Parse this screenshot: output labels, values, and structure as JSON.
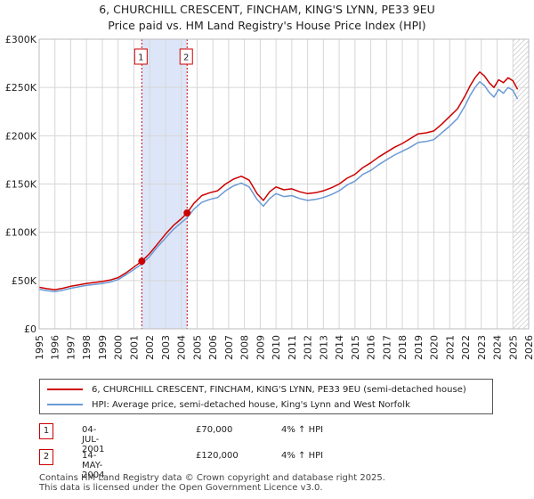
{
  "title_line1": "6, CHURCHILL CRESCENT, FINCHAM, KING'S LYNN, PE33 9EU",
  "title_line2": "Price paid vs. HM Land Registry's House Price Index (HPI)",
  "colors": {
    "property": "#cc0000",
    "hpi": "#6a9ad4",
    "shade": "#dde6f8",
    "grid": "#d6d6d6"
  },
  "chart_data": {
    "type": "line",
    "xlim": [
      1995,
      2026
    ],
    "ylim": [
      0,
      300000
    ],
    "x_ticks": [
      "1995",
      "1996",
      "1997",
      "1998",
      "1999",
      "2000",
      "2001",
      "2002",
      "2003",
      "2004",
      "2005",
      "2006",
      "2007",
      "2008",
      "2009",
      "2010",
      "2011",
      "2012",
      "2013",
      "2014",
      "2015",
      "2016",
      "2017",
      "2018",
      "2019",
      "2020",
      "2021",
      "2022",
      "2023",
      "2024",
      "2025",
      "2026"
    ],
    "y_ticks": [
      {
        "value": 0,
        "label": "£0"
      },
      {
        "value": 50000,
        "label": "£50K"
      },
      {
        "value": 100000,
        "label": "£100K"
      },
      {
        "value": 150000,
        "label": "£150K"
      },
      {
        "value": 200000,
        "label": "£200K"
      },
      {
        "value": 250000,
        "label": "£250K"
      },
      {
        "value": 300000,
        "label": "£300K"
      }
    ],
    "shaded_span": [
      2001.5,
      2004.37
    ],
    "future_from": 2025.0,
    "series": [
      {
        "name": "6, CHURCHILL CRESCENT, FINCHAM, KING'S LYNN, PE33 9EU (semi-detached house)",
        "key": "property",
        "x": [
          1995.0,
          1995.5,
          1996.0,
          1996.5,
          1997.0,
          1997.5,
          1998.0,
          1998.5,
          1999.0,
          1999.5,
          2000.0,
          2000.5,
          2001.0,
          2001.5,
          2002.0,
          2002.5,
          2003.0,
          2003.5,
          2004.0,
          2004.37,
          2004.8,
          2005.3,
          2005.8,
          2006.3,
          2006.8,
          2007.3,
          2007.8,
          2008.3,
          2008.8,
          2009.2,
          2009.6,
          2010.0,
          2010.5,
          2011.0,
          2011.5,
          2012.0,
          2012.5,
          2013.0,
          2013.5,
          2014.0,
          2014.5,
          2015.0,
          2015.5,
          2016.0,
          2016.5,
          2017.0,
          2017.5,
          2018.0,
          2018.5,
          2019.0,
          2019.5,
          2020.0,
          2020.5,
          2021.0,
          2021.5,
          2022.0,
          2022.3,
          2022.6,
          2022.9,
          2023.2,
          2023.5,
          2023.8,
          2024.1,
          2024.4,
          2024.7,
          2025.0,
          2025.3
        ],
        "y": [
          43000,
          41500,
          40500,
          42000,
          44000,
          45500,
          47000,
          48000,
          49000,
          50500,
          53000,
          58000,
          64000,
          70000,
          78000,
          88000,
          98000,
          107000,
          114000,
          120000,
          130000,
          138000,
          141000,
          143000,
          150000,
          155000,
          158000,
          154000,
          140000,
          133000,
          142000,
          147000,
          144000,
          145000,
          142000,
          140000,
          141000,
          143000,
          146000,
          150000,
          156000,
          160000,
          167000,
          172000,
          178000,
          183000,
          188000,
          192000,
          197000,
          202000,
          203000,
          205000,
          212000,
          220000,
          228000,
          242000,
          252000,
          260000,
          266000,
          262000,
          255000,
          250000,
          258000,
          255000,
          260000,
          257000,
          248000
        ]
      },
      {
        "name": "HPI: Average price, semi-detached house, King's Lynn and West Norfolk",
        "key": "hpi",
        "x": [
          1995.0,
          1995.5,
          1996.0,
          1996.5,
          1997.0,
          1997.5,
          1998.0,
          1998.5,
          1999.0,
          1999.5,
          2000.0,
          2000.5,
          2001.0,
          2001.5,
          2002.0,
          2002.5,
          2003.0,
          2003.5,
          2004.0,
          2004.37,
          2004.8,
          2005.3,
          2005.8,
          2006.3,
          2006.8,
          2007.3,
          2007.8,
          2008.3,
          2008.8,
          2009.2,
          2009.6,
          2010.0,
          2010.5,
          2011.0,
          2011.5,
          2012.0,
          2012.5,
          2013.0,
          2013.5,
          2014.0,
          2014.5,
          2015.0,
          2015.5,
          2016.0,
          2016.5,
          2017.0,
          2017.5,
          2018.0,
          2018.5,
          2019.0,
          2019.5,
          2020.0,
          2020.5,
          2021.0,
          2021.5,
          2022.0,
          2022.3,
          2022.6,
          2022.9,
          2023.2,
          2023.5,
          2023.8,
          2024.1,
          2024.4,
          2024.7,
          2025.0,
          2025.3
        ],
        "y": [
          41000,
          39500,
          38500,
          40000,
          42000,
          43500,
          45000,
          46000,
          47000,
          48500,
          51000,
          56000,
          61500,
          67000,
          75000,
          85000,
          94000,
          103000,
          110000,
          115000,
          124000,
          131000,
          134000,
          136000,
          143000,
          148000,
          151000,
          147000,
          134000,
          127000,
          135000,
          140000,
          137000,
          138000,
          135000,
          133000,
          134000,
          136000,
          139000,
          143000,
          149000,
          153000,
          160000,
          164000,
          170000,
          175000,
          180000,
          184000,
          188000,
          193000,
          194000,
          196000,
          203000,
          210000,
          218000,
          232000,
          242000,
          250000,
          256000,
          252000,
          245000,
          240000,
          248000,
          244000,
          250000,
          247000,
          238000
        ]
      }
    ],
    "sales": [
      {
        "label": "1",
        "x": 2001.5,
        "y": 70000
      },
      {
        "label": "2",
        "x": 2004.37,
        "y": 120000
      }
    ]
  },
  "legend": {
    "property_label": "6, CHURCHILL CRESCENT, FINCHAM, KING'S LYNN, PE33 9EU (semi-detached house)",
    "hpi_label": "HPI: Average price, semi-detached house, King's Lynn and West Norfolk"
  },
  "sales_table": [
    {
      "num": "1",
      "date": "04-JUL-2001",
      "price": "£70,000",
      "hpi": "4% ↑ HPI"
    },
    {
      "num": "2",
      "date": "14-MAY-2004",
      "price": "£120,000",
      "hpi": "4% ↑ HPI"
    }
  ],
  "footer": {
    "line1": "Contains HM Land Registry data © Crown copyright and database right 2025.",
    "line2": "This data is licensed under the Open Government Licence v3.0."
  }
}
